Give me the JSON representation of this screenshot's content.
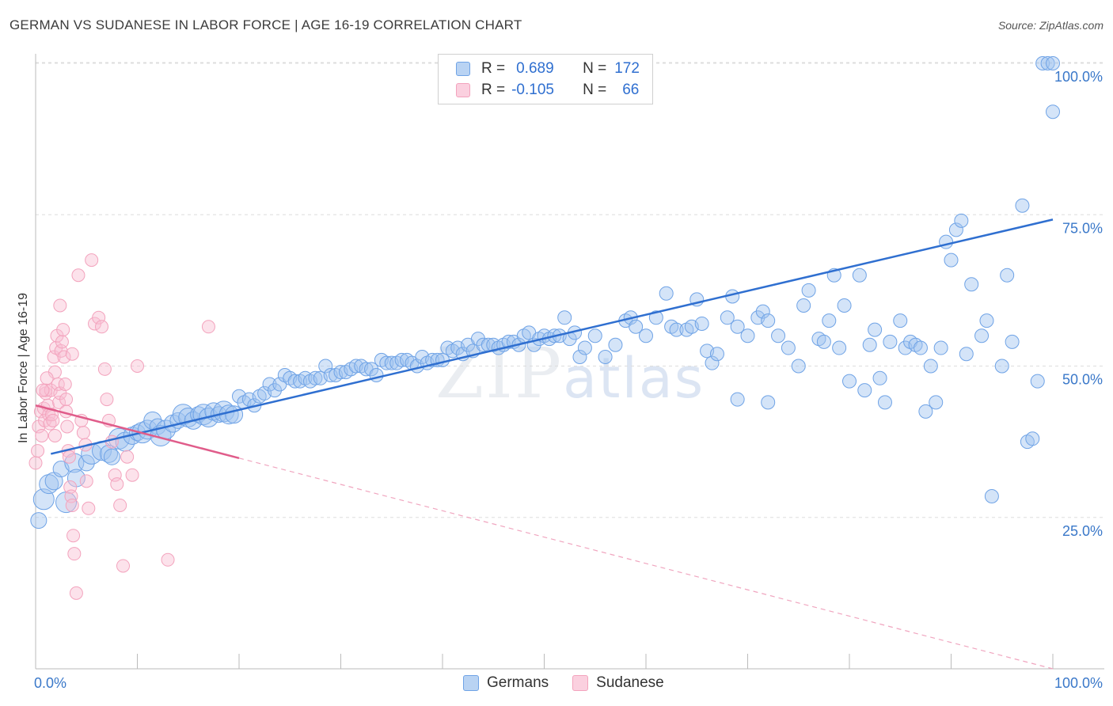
{
  "title": "GERMAN VS SUDANESE IN LABOR FORCE | AGE 16-19 CORRELATION CHART",
  "source": "Source: ZipAtlas.com",
  "watermark": {
    "zip": "ZIP",
    "atlas": "atlas"
  },
  "legend": {
    "rows": [
      {
        "r_label": "R =",
        "r_value": "0.689",
        "n_label": "N =",
        "n_value": "172",
        "color": "#a8c8f0",
        "border": "#5b8fd6"
      },
      {
        "r_label": "R =",
        "r_value": "-0.105",
        "n_label": "N =",
        "n_value": "66",
        "color": "#f8c4d6",
        "border": "#e58aa8"
      }
    ]
  },
  "bottom_legend": {
    "germans": "Germans",
    "sudanese": "Sudanese"
  },
  "chart_data": {
    "type": "scatter",
    "title": "GERMAN VS SUDANESE IN LABOR FORCE | AGE 16-19 CORRELATION CHART",
    "xlabel": "",
    "ylabel": "In Labor Force | Age 16-19",
    "xlim": [
      0,
      100
    ],
    "ylim": [
      0,
      102
    ],
    "x_tick_labels": [
      "0.0%",
      "100.0%"
    ],
    "y_ticks": [
      25,
      50,
      75,
      100
    ],
    "y_tick_labels": [
      "25.0%",
      "50.0%",
      "75.0%",
      "100.0%"
    ],
    "series": [
      {
        "name": "Germans",
        "color": "#6fa3e6",
        "trend": {
          "x0": 1.5,
          "y0": 35.5,
          "x1": 100,
          "y1": 74.2,
          "color": "#2f6fd0"
        },
        "points": [
          [
            0.3,
            24.5
          ],
          [
            0.8,
            28
          ],
          [
            1.3,
            30.5
          ],
          [
            1.8,
            31
          ],
          [
            2.5,
            33
          ],
          [
            3,
            27.5
          ],
          [
            3.8,
            34
          ],
          [
            4,
            31.5
          ],
          [
            5,
            34
          ],
          [
            5.5,
            35.5
          ],
          [
            6.5,
            36
          ],
          [
            7.2,
            35.5
          ],
          [
            7.5,
            35
          ],
          [
            8.2,
            38
          ],
          [
            8.8,
            37.5
          ],
          [
            9.5,
            38.5
          ],
          [
            10,
            39
          ],
          [
            10.5,
            39
          ],
          [
            11,
            39.5
          ],
          [
            11.5,
            41
          ],
          [
            12,
            40
          ],
          [
            12.3,
            38.5
          ],
          [
            12.8,
            39.5
          ],
          [
            13.5,
            40.5
          ],
          [
            14,
            41
          ],
          [
            14.5,
            42
          ],
          [
            15,
            41.5
          ],
          [
            15.5,
            41
          ],
          [
            16,
            42
          ],
          [
            16.5,
            42
          ],
          [
            17,
            41.5
          ],
          [
            17.5,
            42.5
          ],
          [
            18,
            42
          ],
          [
            18.5,
            42.5
          ],
          [
            19,
            42
          ],
          [
            19.5,
            42
          ],
          [
            20,
            45
          ],
          [
            20.5,
            44
          ],
          [
            21,
            44.5
          ],
          [
            21.5,
            43.5
          ],
          [
            22,
            45
          ],
          [
            22.5,
            45.5
          ],
          [
            23,
            47
          ],
          [
            23.5,
            46
          ],
          [
            24,
            47
          ],
          [
            24.5,
            48.5
          ],
          [
            25,
            48
          ],
          [
            25.5,
            47.5
          ],
          [
            26,
            47.5
          ],
          [
            26.5,
            48
          ],
          [
            27,
            47.5
          ],
          [
            27.5,
            48
          ],
          [
            28,
            48
          ],
          [
            28.5,
            50
          ],
          [
            29,
            48.5
          ],
          [
            29.5,
            48.5
          ],
          [
            30,
            49
          ],
          [
            30.5,
            49
          ],
          [
            31,
            49.5
          ],
          [
            31.5,
            50
          ],
          [
            32,
            50
          ],
          [
            32.5,
            49.5
          ],
          [
            33,
            49.5
          ],
          [
            33.5,
            48.5
          ],
          [
            34,
            51
          ],
          [
            34.5,
            50.5
          ],
          [
            35,
            50.5
          ],
          [
            35.5,
            50.5
          ],
          [
            36,
            51
          ],
          [
            36.5,
            51
          ],
          [
            37,
            50.5
          ],
          [
            37.5,
            50
          ],
          [
            38,
            51.5
          ],
          [
            38.5,
            50.5
          ],
          [
            39,
            51
          ],
          [
            39.5,
            51
          ],
          [
            40,
            51
          ],
          [
            40.5,
            53
          ],
          [
            41,
            52.5
          ],
          [
            41.5,
            53
          ],
          [
            42,
            52
          ],
          [
            42.5,
            53.5
          ],
          [
            43,
            52.5
          ],
          [
            43.5,
            54.5
          ],
          [
            44,
            53.5
          ],
          [
            44.5,
            53.5
          ],
          [
            45,
            53.5
          ],
          [
            45.5,
            53
          ],
          [
            46,
            53.5
          ],
          [
            46.5,
            54
          ],
          [
            47,
            54
          ],
          [
            47.5,
            53.5
          ],
          [
            48,
            55
          ],
          [
            48.5,
            55.5
          ],
          [
            49,
            53.5
          ],
          [
            49.5,
            54.5
          ],
          [
            50,
            55
          ],
          [
            50.5,
            54.5
          ],
          [
            51,
            55
          ],
          [
            51.5,
            55
          ],
          [
            52,
            58
          ],
          [
            52.5,
            54.5
          ],
          [
            53,
            55.5
          ],
          [
            53.5,
            51.5
          ],
          [
            54,
            53
          ],
          [
            55,
            55
          ],
          [
            56,
            51.5
          ],
          [
            57,
            53.5
          ],
          [
            58,
            57.5
          ],
          [
            58.5,
            58
          ],
          [
            59,
            56.5
          ],
          [
            60,
            55
          ],
          [
            61,
            58
          ],
          [
            62,
            62
          ],
          [
            62.5,
            56.5
          ],
          [
            63,
            56
          ],
          [
            64,
            56
          ],
          [
            64.5,
            56.5
          ],
          [
            65,
            61
          ],
          [
            65.5,
            57
          ],
          [
            66,
            52.5
          ],
          [
            66.5,
            50.5
          ],
          [
            67,
            52
          ],
          [
            68,
            58
          ],
          [
            68.5,
            61.5
          ],
          [
            69,
            56.5
          ],
          [
            69,
            44.5
          ],
          [
            70,
            55
          ],
          [
            71,
            58
          ],
          [
            71.5,
            59
          ],
          [
            72,
            57.5
          ],
          [
            72,
            44
          ],
          [
            73,
            55
          ],
          [
            74,
            53
          ],
          [
            75,
            50
          ],
          [
            75.5,
            60
          ],
          [
            76,
            62.5
          ],
          [
            77,
            54.5
          ],
          [
            77.5,
            54
          ],
          [
            78,
            57.5
          ],
          [
            78.5,
            65
          ],
          [
            79,
            53
          ],
          [
            79.5,
            60
          ],
          [
            80,
            47.5
          ],
          [
            81,
            65
          ],
          [
            81.5,
            46
          ],
          [
            82,
            53.5
          ],
          [
            82.5,
            56
          ],
          [
            83,
            48
          ],
          [
            83.5,
            44
          ],
          [
            84,
            54
          ],
          [
            85,
            57.5
          ],
          [
            85.5,
            53
          ],
          [
            86,
            54
          ],
          [
            86.5,
            53.5
          ],
          [
            87,
            53
          ],
          [
            87.5,
            42.5
          ],
          [
            88,
            50
          ],
          [
            88.5,
            44
          ],
          [
            89,
            53
          ],
          [
            89.5,
            70.5
          ],
          [
            90,
            67.5
          ],
          [
            90.5,
            72.5
          ],
          [
            91,
            74
          ],
          [
            91.5,
            52
          ],
          [
            92,
            63.5
          ],
          [
            93,
            55
          ],
          [
            93.5,
            57.5
          ],
          [
            94,
            28.5
          ],
          [
            95,
            50
          ],
          [
            95.5,
            65
          ],
          [
            96,
            54
          ],
          [
            97,
            76.5
          ],
          [
            97.5,
            37.5
          ],
          [
            98,
            38
          ],
          [
            98.5,
            47.5
          ],
          [
            99,
            100
          ],
          [
            99.5,
            100
          ],
          [
            100,
            100
          ],
          [
            100,
            92
          ]
        ]
      },
      {
        "name": "Sudanese",
        "color": "#f3a3bd",
        "trend": {
          "x0": 0,
          "y0": 43.5,
          "x1": 100,
          "y1": 0,
          "solid_until": 20,
          "color": "#e05c8a"
        },
        "points": [
          [
            0,
            34
          ],
          [
            0.2,
            36
          ],
          [
            0.3,
            40
          ],
          [
            0.5,
            42.5
          ],
          [
            0.6,
            38.5
          ],
          [
            0.8,
            43
          ],
          [
            0.9,
            41
          ],
          [
            1,
            45.5
          ],
          [
            1,
            46
          ],
          [
            1.2,
            43.5
          ],
          [
            1.3,
            42
          ],
          [
            1.4,
            40.5
          ],
          [
            1.5,
            46
          ],
          [
            1.6,
            42
          ],
          [
            1.7,
            41
          ],
          [
            1.8,
            51.5
          ],
          [
            1.9,
            49
          ],
          [
            2,
            53
          ],
          [
            2.1,
            55
          ],
          [
            2.2,
            47
          ],
          [
            2.3,
            44
          ],
          [
            2.4,
            45.5
          ],
          [
            2.5,
            52.5
          ],
          [
            2.6,
            54
          ],
          [
            2.7,
            56
          ],
          [
            2.8,
            51.5
          ],
          [
            2.9,
            47
          ],
          [
            3,
            44.5
          ],
          [
            3,
            42.5
          ],
          [
            3.1,
            40
          ],
          [
            3.2,
            36
          ],
          [
            3.3,
            35
          ],
          [
            3.4,
            30
          ],
          [
            3.5,
            28.5
          ],
          [
            3.6,
            27
          ],
          [
            3.7,
            22
          ],
          [
            3.8,
            19
          ],
          [
            4,
            12.5
          ],
          [
            4.2,
            65
          ],
          [
            4.5,
            41
          ],
          [
            4.7,
            39
          ],
          [
            4.9,
            37
          ],
          [
            5,
            31
          ],
          [
            5.2,
            26.5
          ],
          [
            5.5,
            67.5
          ],
          [
            5.8,
            57
          ],
          [
            6.2,
            58
          ],
          [
            6.5,
            56.5
          ],
          [
            6.8,
            49.5
          ],
          [
            7,
            44.5
          ],
          [
            7.2,
            41
          ],
          [
            7.5,
            37.5
          ],
          [
            7.8,
            32
          ],
          [
            8,
            30.5
          ],
          [
            8.3,
            27
          ],
          [
            8.6,
            17
          ],
          [
            9,
            35
          ],
          [
            9.5,
            32
          ],
          [
            10,
            50
          ],
          [
            13,
            18
          ],
          [
            17,
            56.5
          ],
          [
            1.1,
            48
          ],
          [
            2.4,
            60
          ],
          [
            0.7,
            46
          ],
          [
            1.9,
            38.5
          ],
          [
            3.6,
            52
          ]
        ]
      }
    ]
  }
}
